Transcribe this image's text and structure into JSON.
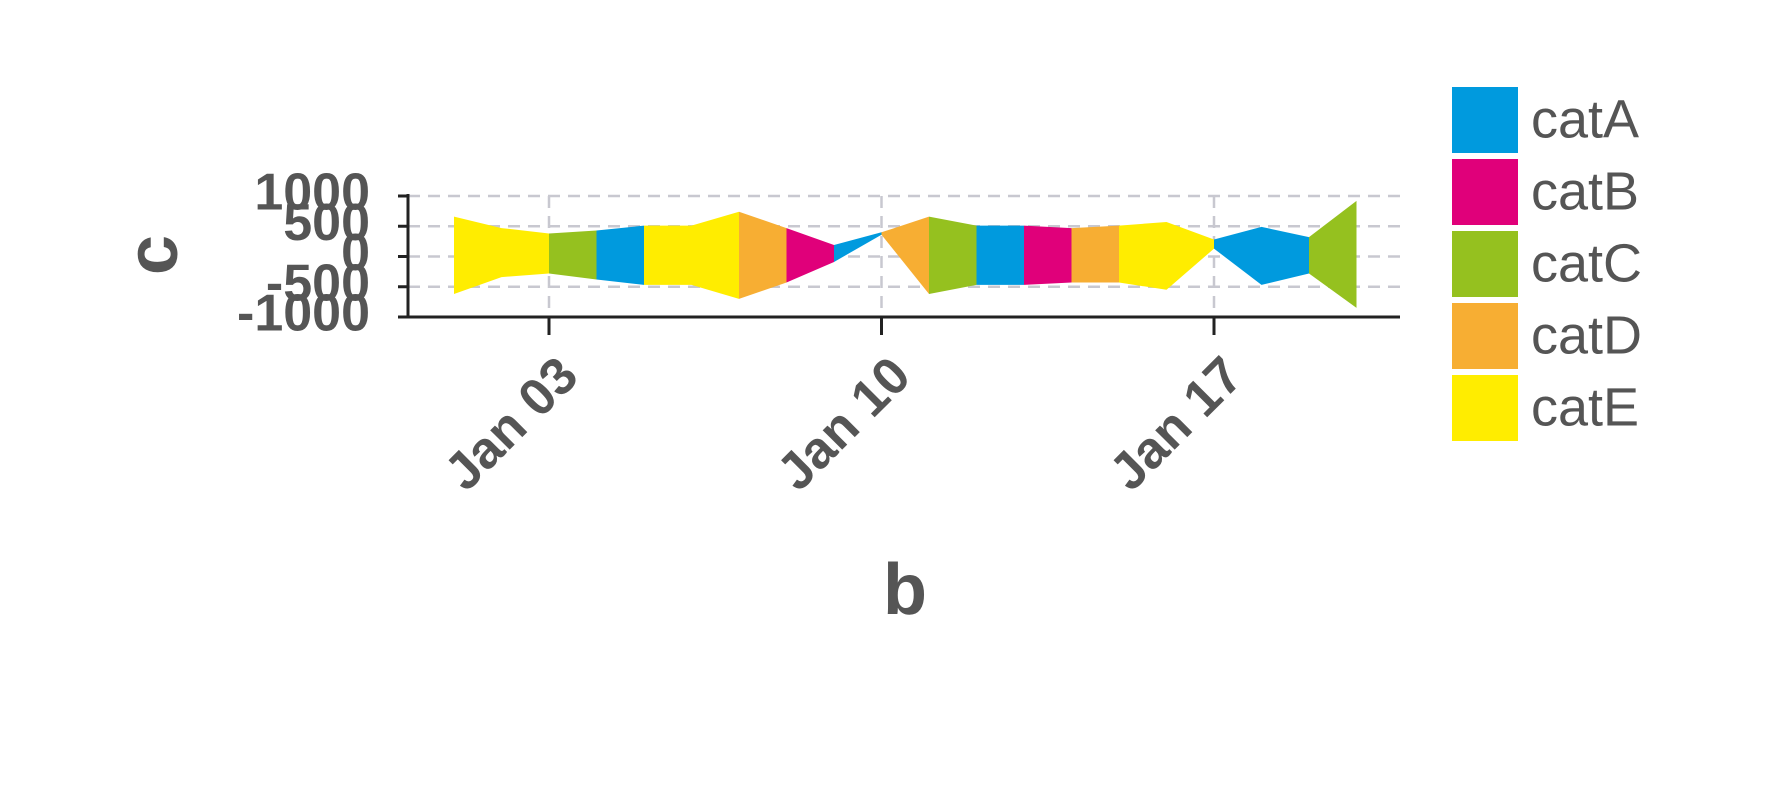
{
  "chart_data": {
    "type": "ribbon",
    "x_label": "b",
    "y_label": "c",
    "x": [
      "Jan 01",
      "Jan 02",
      "Jan 03",
      "Jan 04",
      "Jan 05",
      "Jan 06",
      "Jan 07",
      "Jan 08",
      "Jan 09",
      "Jan 10",
      "Jan 11",
      "Jan 12",
      "Jan 13",
      "Jan 14",
      "Jan 15",
      "Jan 16",
      "Jan 17",
      "Jan 18",
      "Jan 19",
      "Jan 20"
    ],
    "upper": [
      660,
      470,
      380,
      430,
      510,
      510,
      740,
      470,
      190,
      400,
      660,
      510,
      510,
      470,
      510,
      570,
      280,
      490,
      320,
      920
    ],
    "lower": [
      -620,
      -340,
      -280,
      -380,
      -470,
      -470,
      -700,
      -430,
      -90,
      360,
      -620,
      -470,
      -470,
      -430,
      -430,
      -550,
      130,
      -470,
      -280,
      -850
    ],
    "segment_category": [
      "catE",
      "catE",
      "catC",
      "catA",
      "catE",
      "catE",
      "catD",
      "catB",
      "catA",
      "catD",
      "catC",
      "catA",
      "catB",
      "catD",
      "catE",
      "catE",
      "catA",
      "catA",
      "catC"
    ],
    "series": [
      {
        "name": "catA",
        "color": "#009ADE"
      },
      {
        "name": "catB",
        "color": "#E0007A"
      },
      {
        "name": "catC",
        "color": "#95C11F"
      },
      {
        "name": "catD",
        "color": "#F7AE33"
      },
      {
        "name": "catE",
        "color": "#FFED00"
      }
    ],
    "ylim": [
      -1000,
      1000
    ],
    "yticks": [
      -1000,
      -500,
      0,
      500,
      1000
    ],
    "xticks": [
      "Jan 03",
      "Jan 10",
      "Jan 17"
    ],
    "grid": true
  }
}
